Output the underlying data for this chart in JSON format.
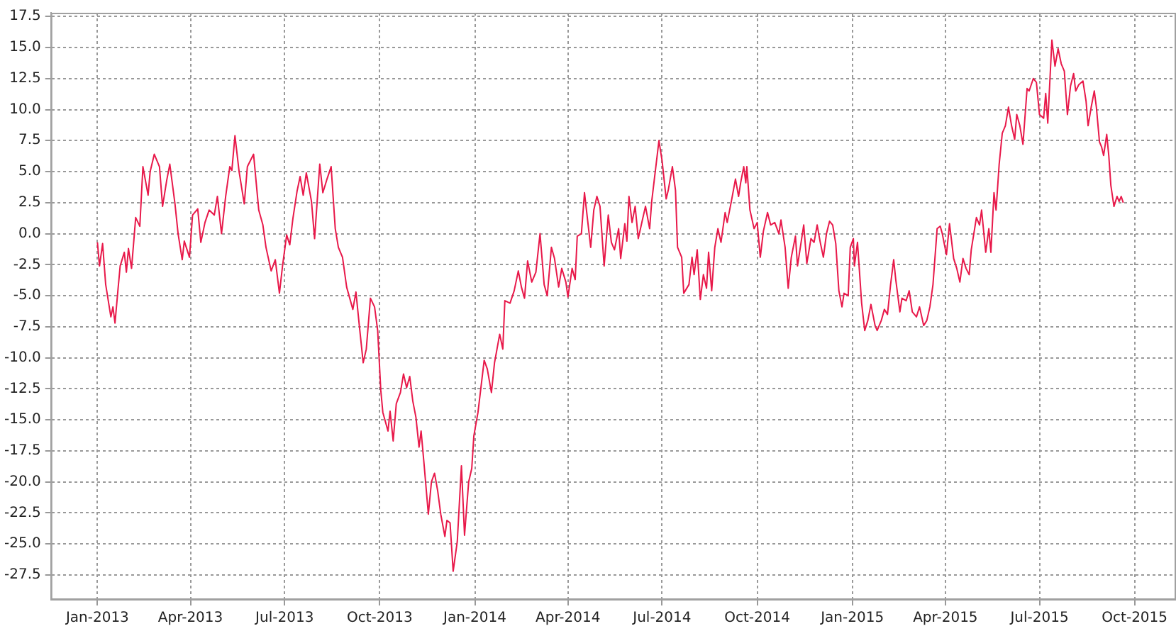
{
  "chart_data": {
    "type": "line",
    "grid": true,
    "legend": false,
    "marker": "none",
    "line_style": "solid",
    "xlim": [
      "2012-11-17",
      "2015-11-10"
    ],
    "xticks": [
      {
        "value": "2013-01-01",
        "label": "Jan-2013"
      },
      {
        "value": "2013-04-01",
        "label": "Apr-2013"
      },
      {
        "value": "2013-07-01",
        "label": "Jul-2013"
      },
      {
        "value": "2013-10-01",
        "label": "Oct-2013"
      },
      {
        "value": "2014-01-01",
        "label": "Jan-2014"
      },
      {
        "value": "2014-04-01",
        "label": "Apr-2014"
      },
      {
        "value": "2014-07-01",
        "label": "Jul-2014"
      },
      {
        "value": "2014-10-01",
        "label": "Oct-2014"
      },
      {
        "value": "2015-01-01",
        "label": "Jan-2015"
      },
      {
        "value": "2015-04-01",
        "label": "Apr-2015"
      },
      {
        "value": "2015-07-01",
        "label": "Jul-2015"
      },
      {
        "value": "2015-10-01",
        "label": "Oct-2015"
      }
    ],
    "ylim": [
      -29.5,
      17.8
    ],
    "yticks": [
      {
        "value": -27.5,
        "label": "-27.5"
      },
      {
        "value": -25,
        "label": "-25.0"
      },
      {
        "value": -22.5,
        "label": "-22.5"
      },
      {
        "value": -20,
        "label": "-20.0"
      },
      {
        "value": -17.5,
        "label": "-17.5"
      },
      {
        "value": -15,
        "label": "-15.0"
      },
      {
        "value": -12.5,
        "label": "-12.5"
      },
      {
        "value": -10,
        "label": "-10.0"
      },
      {
        "value": -7.5,
        "label": "-7.5"
      },
      {
        "value": -5,
        "label": "-5.0"
      },
      {
        "value": -2.5,
        "label": "-2.5"
      },
      {
        "value": 0,
        "label": "0.0"
      },
      {
        "value": 2.5,
        "label": "2.5"
      },
      {
        "value": 5,
        "label": "5.0"
      },
      {
        "value": 7.5,
        "label": "7.5"
      },
      {
        "value": 10,
        "label": "10.0"
      },
      {
        "value": 12.5,
        "label": "12.5"
      },
      {
        "value": 15,
        "label": "15.0"
      },
      {
        "value": 17.5,
        "label": "17.5"
      }
    ],
    "x": [
      "2013-01-01",
      "2013-01-03",
      "2013-01-06",
      "2013-01-09",
      "2013-01-14",
      "2013-01-16",
      "2013-01-18",
      "2013-01-21",
      "2013-01-23",
      "2013-01-27",
      "2013-01-29",
      "2013-01-31",
      "2013-02-03",
      "2013-02-07",
      "2013-02-11",
      "2013-02-14",
      "2013-02-19",
      "2013-02-21",
      "2013-02-25",
      "2013-03-02",
      "2013-03-05",
      "2013-03-09",
      "2013-03-12",
      "2013-03-17",
      "2013-03-20",
      "2013-03-24",
      "2013-03-26",
      "2013-03-31",
      "2013-04-03",
      "2013-04-08",
      "2013-04-11",
      "2013-04-15",
      "2013-04-19",
      "2013-04-24",
      "2013-04-27",
      "2013-05-01",
      "2013-05-05",
      "2013-05-09",
      "2013-05-11",
      "2013-05-14",
      "2013-05-18",
      "2013-05-23",
      "2013-05-26",
      "2013-06-01",
      "2013-06-06",
      "2013-06-10",
      "2013-06-13",
      "2013-06-18",
      "2013-06-22",
      "2013-06-26",
      "2013-06-29",
      "2013-07-03",
      "2013-07-06",
      "2013-07-09",
      "2013-07-13",
      "2013-07-16",
      "2013-07-19",
      "2013-07-22",
      "2013-07-27",
      "2013-07-30",
      "2013-08-04",
      "2013-08-07",
      "2013-08-11",
      "2013-08-15",
      "2013-08-19",
      "2013-08-22",
      "2013-08-26",
      "2013-08-30",
      "2013-09-05",
      "2013-09-08",
      "2013-09-11",
      "2013-09-15",
      "2013-09-18",
      "2013-09-22",
      "2013-09-26",
      "2013-09-29",
      "2013-10-02",
      "2013-10-04",
      "2013-10-09",
      "2013-10-11",
      "2013-10-14",
      "2013-10-17",
      "2013-10-21",
      "2013-10-24",
      "2013-10-27",
      "2013-10-30",
      "2013-11-02",
      "2013-11-05",
      "2013-11-08",
      "2013-11-10",
      "2013-11-13",
      "2013-11-17",
      "2013-11-20",
      "2013-11-23",
      "2013-11-26",
      "2013-11-29",
      "2013-12-03",
      "2013-12-05",
      "2013-12-08",
      "2013-12-11",
      "2013-12-15",
      "2013-12-19",
      "2013-12-22",
      "2013-12-26",
      "2013-12-29",
      "2013-12-31",
      "2014-01-04",
      "2014-01-10",
      "2014-01-13",
      "2014-01-17",
      "2014-01-20",
      "2014-01-25",
      "2014-01-28",
      "2014-01-30",
      "2014-02-04",
      "2014-02-08",
      "2014-02-12",
      "2014-02-15",
      "2014-02-18",
      "2014-02-21",
      "2014-02-25",
      "2014-03-01",
      "2014-03-05",
      "2014-03-09",
      "2014-03-12",
      "2014-03-16",
      "2014-03-19",
      "2014-03-23",
      "2014-03-26",
      "2014-03-30",
      "2014-04-01",
      "2014-04-05",
      "2014-04-08",
      "2014-04-10",
      "2014-04-14",
      "2014-04-17",
      "2014-04-20",
      "2014-04-23",
      "2014-04-26",
      "2014-04-29",
      "2014-05-02",
      "2014-05-06",
      "2014-05-10",
      "2014-05-13",
      "2014-05-16",
      "2014-05-20",
      "2014-05-22",
      "2014-05-26",
      "2014-05-28",
      "2014-05-30",
      "2014-06-02",
      "2014-06-05",
      "2014-06-08",
      "2014-06-12",
      "2014-06-15",
      "2014-06-19",
      "2014-06-21",
      "2014-06-25",
      "2014-06-28",
      "2014-07-01",
      "2014-07-05",
      "2014-07-07",
      "2014-07-11",
      "2014-07-14",
      "2014-07-16",
      "2014-07-20",
      "2014-07-22",
      "2014-07-27",
      "2014-07-30",
      "2014-08-01",
      "2014-08-04",
      "2014-08-07",
      "2014-08-10",
      "2014-08-13",
      "2014-08-15",
      "2014-08-18",
      "2014-08-21",
      "2014-08-24",
      "2014-08-27",
      "2014-08-31",
      "2014-09-02",
      "2014-09-06",
      "2014-09-10",
      "2014-09-13",
      "2014-09-15",
      "2014-09-18",
      "2014-09-20",
      "2014-09-21",
      "2014-09-24",
      "2014-09-28",
      "2014-10-01",
      "2014-10-04",
      "2014-10-07",
      "2014-10-11",
      "2014-10-14",
      "2014-10-18",
      "2014-10-22",
      "2014-10-24",
      "2014-10-28",
      "2014-10-31",
      "2014-11-03",
      "2014-11-07",
      "2014-11-09",
      "2014-11-13",
      "2014-11-15",
      "2014-11-18",
      "2014-11-22",
      "2014-11-25",
      "2014-11-28",
      "2014-12-01",
      "2014-12-04",
      "2014-12-07",
      "2014-12-10",
      "2014-12-13",
      "2014-12-16",
      "2014-12-19",
      "2014-12-22",
      "2014-12-24",
      "2014-12-28",
      "2014-12-30",
      "2015-01-02",
      "2015-01-03",
      "2015-01-06",
      "2015-01-10",
      "2015-01-13",
      "2015-01-16",
      "2015-01-19",
      "2015-01-23",
      "2015-01-25",
      "2015-01-29",
      "2015-02-01",
      "2015-02-04",
      "2015-02-07",
      "2015-02-10",
      "2015-02-12",
      "2015-02-16",
      "2015-02-18",
      "2015-02-22",
      "2015-02-25",
      "2015-02-28",
      "2015-03-04",
      "2015-03-07",
      "2015-03-11",
      "2015-03-14",
      "2015-03-17",
      "2015-03-20",
      "2015-03-24",
      "2015-03-27",
      "2015-03-29",
      "2015-04-02",
      "2015-04-05",
      "2015-04-09",
      "2015-04-12",
      "2015-04-15",
      "2015-04-18",
      "2015-04-21",
      "2015-04-24",
      "2015-04-26",
      "2015-05-01",
      "2015-05-04",
      "2015-05-06",
      "2015-05-10",
      "2015-05-13",
      "2015-05-15",
      "2015-05-18",
      "2015-05-20",
      "2015-05-23",
      "2015-05-26",
      "2015-05-29",
      "2015-06-01",
      "2015-06-04",
      "2015-06-07",
      "2015-06-09",
      "2015-06-12",
      "2015-06-15",
      "2015-06-19",
      "2015-06-21",
      "2015-06-25",
      "2015-06-28",
      "2015-07-01",
      "2015-07-05",
      "2015-07-07",
      "2015-07-09",
      "2015-07-13",
      "2015-07-16",
      "2015-07-19",
      "2015-07-22",
      "2015-07-25",
      "2015-07-28",
      "2015-07-31",
      "2015-08-03",
      "2015-08-05",
      "2015-08-08",
      "2015-08-12",
      "2015-08-15",
      "2015-08-17",
      "2015-08-20",
      "2015-08-23",
      "2015-08-25",
      "2015-08-28",
      "2015-08-30",
      "2015-09-01",
      "2015-09-04",
      "2015-09-06",
      "2015-09-08",
      "2015-09-11",
      "2015-09-14",
      "2015-09-16",
      "2015-09-18",
      "2015-09-20"
    ],
    "series": [
      {
        "color": "#e8194a",
        "values": [
          -0.7,
          -2.6,
          -0.8,
          -4.1,
          -6.7,
          -5.9,
          -7.2,
          -4.4,
          -2.6,
          -1.5,
          -3.1,
          -1.2,
          -2.8,
          1.3,
          0.6,
          5.4,
          3.1,
          5.0,
          6.4,
          5.4,
          2.2,
          4.3,
          5.6,
          2.4,
          0,
          -2.1,
          -0.6,
          -1.9,
          1.5,
          2.0,
          -0.7,
          0.9,
          1.9,
          1.5,
          3.0,
          0,
          3.0,
          5.4,
          5.1,
          7.9,
          5.0,
          2.4,
          5.4,
          6.4,
          1.9,
          0.7,
          -1.1,
          -3.0,
          -2.1,
          -4.8,
          -2.6,
          -0.1,
          -0.9,
          1.2,
          3.4,
          4.6,
          3.1,
          4.9,
          2.6,
          -0.4,
          5.6,
          3.3,
          4.4,
          5.4,
          0.4,
          -1.1,
          -1.9,
          -4.3,
          -6.1,
          -4.7,
          -7.2,
          -10.4,
          -9.3,
          -5.2,
          -5.9,
          -7.8,
          -12.6,
          -14.4,
          -15.9,
          -14.3,
          -16.7,
          -13.7,
          -12.8,
          -11.3,
          -12.4,
          -11.5,
          -13.5,
          -14.8,
          -17.2,
          -15.9,
          -18.7,
          -22.6,
          -20.0,
          -19.3,
          -20.7,
          -22.6,
          -24.4,
          -23.1,
          -23.3,
          -27.2,
          -24.8,
          -18.7,
          -24.3,
          -20.0,
          -18.9,
          -16.3,
          -14.4,
          -10.2,
          -10.9,
          -12.8,
          -10.4,
          -8.1,
          -9.3,
          -5.4,
          -5.6,
          -4.6,
          -3.0,
          -4.3,
          -5.2,
          -2.2,
          -3.9,
          -3.1,
          0,
          -4.1,
          -5.0,
          -1.1,
          -2.0,
          -4.3,
          -2.8,
          -3.9,
          -5.1,
          -2.8,
          -3.7,
          -0.2,
          0,
          3.3,
          1.1,
          -1.1,
          1.9,
          3.0,
          2.2,
          -2.6,
          1.5,
          -0.7,
          -1.3,
          0.4,
          -2.0,
          0.8,
          -0.6,
          3.0,
          0.9,
          2.2,
          -0.4,
          1.1,
          2.2,
          0.4,
          2.6,
          5.4,
          7.5,
          5.9,
          2.8,
          3.5,
          5.4,
          3.5,
          -1.1,
          -1.9,
          -4.8,
          -4.1,
          -1.9,
          -3.3,
          -1.3,
          -5.3,
          -3.3,
          -4.4,
          -1.5,
          -4.6,
          -1.1,
          0.4,
          -0.7,
          1.7,
          0.9,
          2.6,
          4.4,
          3.0,
          4.1,
          5.4,
          4.1,
          5.4,
          1.9,
          0.4,
          0.9,
          -1.9,
          0.2,
          1.7,
          0.7,
          0.9,
          0,
          1.1,
          -1.1,
          -4.4,
          -1.9,
          -0.2,
          -2.6,
          -0.4,
          0.7,
          -2.4,
          -0.4,
          -0.7,
          0.7,
          -0.7,
          -1.9,
          0,
          1.0,
          0.7,
          -0.8,
          -4.6,
          -5.9,
          -4.8,
          -5.0,
          -1.1,
          -0.4,
          -2.6,
          -0.7,
          -5.6,
          -7.8,
          -7.0,
          -5.7,
          -7.4,
          -7.8,
          -7.0,
          -6.1,
          -6.5,
          -4.1,
          -2.1,
          -3.7,
          -6.3,
          -5.2,
          -5.4,
          -4.6,
          -6.3,
          -6.7,
          -5.9,
          -7.4,
          -7.0,
          -5.9,
          -4.1,
          0.4,
          0.6,
          0,
          -1.7,
          0.8,
          -2.0,
          -2.8,
          -3.9,
          -2.0,
          -2.8,
          -3.3,
          -1.3,
          1.3,
          0.7,
          1.9,
          -1.5,
          0.4,
          -1.5,
          3.3,
          1.9,
          5.6,
          8.1,
          8.7,
          10.2,
          8.7,
          7.6,
          9.6,
          8.7,
          7.2,
          11.7,
          11.5,
          12.5,
          12.2,
          9.6,
          9.3,
          11.3,
          8.9,
          15.6,
          13.5,
          14.9,
          13.7,
          13.1,
          9.6,
          11.9,
          12.9,
          11.5,
          12.0,
          12.3,
          10.7,
          8.7,
          10.2,
          11.5,
          10.2,
          7.4,
          7.0,
          6.3,
          8.0,
          6.3,
          3.9,
          2.2,
          3.0,
          2.6,
          3.0,
          2.5
        ]
      }
    ]
  }
}
